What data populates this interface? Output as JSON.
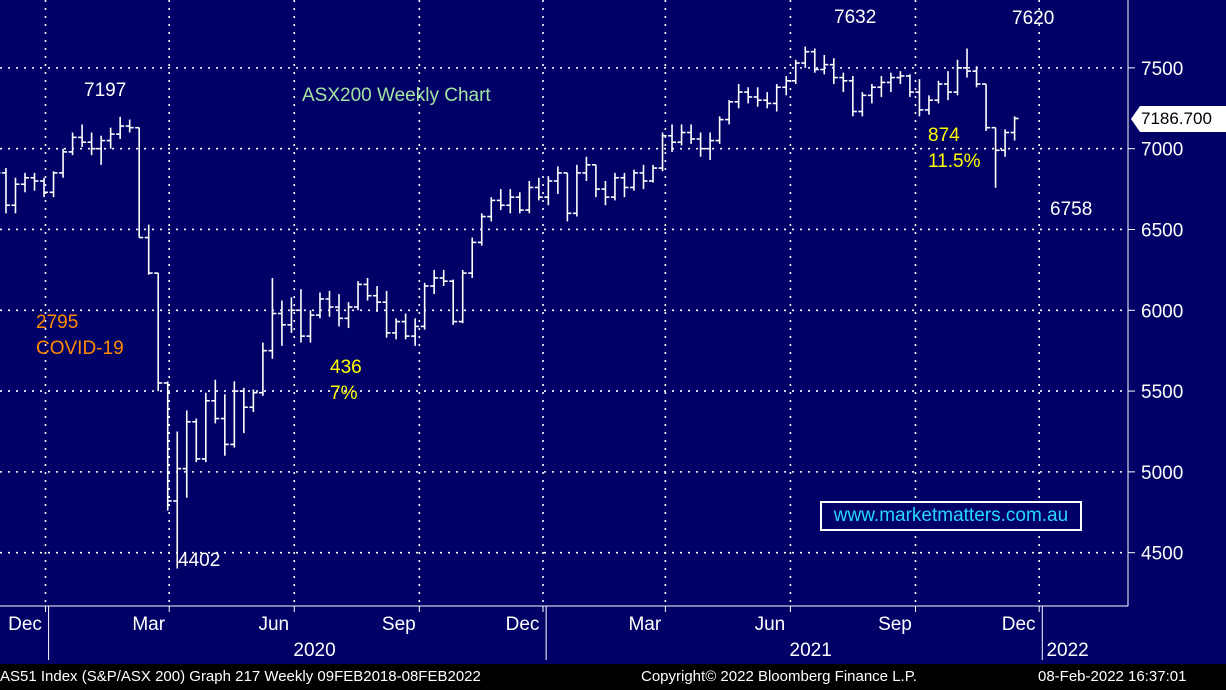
{
  "chart_data": {
    "type": "ohlc",
    "title": "ASX200 Weekly Chart",
    "xlabel": "",
    "ylabel": "",
    "ylim": [
      4170,
      7920
    ],
    "yticks": [
      4500,
      5000,
      5500,
      6000,
      6500,
      7000,
      7500
    ],
    "grid": true,
    "month_labels": [
      {
        "label": "Dec",
        "date": "2019-12-15"
      },
      {
        "label": "Mar",
        "date": "2020-03-15"
      },
      {
        "label": "Jun",
        "date": "2020-06-15"
      },
      {
        "label": "Sep",
        "date": "2020-09-15"
      },
      {
        "label": "Dec",
        "date": "2020-12-15"
      },
      {
        "label": "Mar",
        "date": "2021-03-15"
      },
      {
        "label": "Jun",
        "date": "2021-06-15"
      },
      {
        "label": "Sep",
        "date": "2021-09-15"
      },
      {
        "label": "Dec",
        "date": "2021-12-15"
      }
    ],
    "year_labels": [
      {
        "label": "2020",
        "date": "2020-07-15"
      },
      {
        "label": "2021",
        "date": "2021-07-15"
      },
      {
        "label": "2022",
        "date": "2022-01-20"
      }
    ],
    "year_dividers": [
      "2020-01-01",
      "2021-01-01",
      "2022-01-01"
    ],
    "last_price": "7186.700",
    "annotations": [
      {
        "text": "7197",
        "color": "#ffffff"
      },
      {
        "text": "7632",
        "color": "#ffffff"
      },
      {
        "text": "7620",
        "color": "#ffffff"
      },
      {
        "text": "6758",
        "color": "#ffffff"
      },
      {
        "text": "4402",
        "color": "#ffffff"
      },
      {
        "text": "2795",
        "color": "#ff8c00"
      },
      {
        "text": "COVID-19",
        "color": "#ff8c00"
      },
      {
        "text": "436",
        "color": "#ffff00"
      },
      {
        "text": "7%",
        "color": "#ffff00"
      },
      {
        "text": "874",
        "color": "#ffff00"
      },
      {
        "text": "11.5%",
        "color": "#ffff00"
      }
    ],
    "watermark": "www.marketmatters.com.au",
    "series": [
      {
        "start_date": "2019-11-24",
        "columns": [
          "open",
          "high",
          "low",
          "close"
        ],
        "ohlc": [
          [
            6800,
            6900,
            6650,
            6850
          ],
          [
            6850,
            6880,
            6600,
            6650
          ],
          [
            6650,
            6820,
            6600,
            6780
          ],
          [
            6780,
            6850,
            6730,
            6820
          ],
          [
            6820,
            6850,
            6740,
            6800
          ],
          [
            6800,
            6820,
            6700,
            6730
          ],
          [
            6730,
            6860,
            6700,
            6850
          ],
          [
            6850,
            7000,
            6820,
            6980
          ],
          [
            6980,
            7100,
            6960,
            7070
          ],
          [
            7070,
            7150,
            7010,
            7040
          ],
          [
            7040,
            7100,
            6960,
            7000
          ],
          [
            7000,
            7080,
            6900,
            7050
          ],
          [
            7050,
            7130,
            7000,
            7090
          ],
          [
            7090,
            7197,
            7060,
            7140
          ],
          [
            7140,
            7180,
            7100,
            7130
          ],
          [
            7130,
            7130,
            6450,
            6450
          ],
          [
            6450,
            6530,
            6220,
            6230
          ],
          [
            6230,
            6230,
            5500,
            5550
          ],
          [
            5550,
            5560,
            4760,
            4820
          ],
          [
            4820,
            5250,
            4402,
            5020
          ],
          [
            5020,
            5380,
            4840,
            5310
          ],
          [
            5310,
            5330,
            5060,
            5080
          ],
          [
            5080,
            5490,
            5060,
            5440
          ],
          [
            5440,
            5570,
            5300,
            5330
          ],
          [
            5330,
            5480,
            5100,
            5170
          ],
          [
            5170,
            5560,
            5150,
            5500
          ],
          [
            5500,
            5520,
            5240,
            5400
          ],
          [
            5400,
            5510,
            5370,
            5490
          ],
          [
            5490,
            5800,
            5470,
            5750
          ],
          [
            5750,
            6200,
            5700,
            5980
          ],
          [
            5980,
            6060,
            5780,
            5910
          ],
          [
            5910,
            6080,
            5860,
            6000
          ],
          [
            6000,
            6130,
            5800,
            5840
          ],
          [
            5840,
            6000,
            5800,
            5970
          ],
          [
            5970,
            6110,
            5950,
            6070
          ],
          [
            6070,
            6120,
            5960,
            6020
          ],
          [
            6020,
            6100,
            5900,
            5950
          ],
          [
            5950,
            6050,
            5890,
            6020
          ],
          [
            6020,
            6180,
            6000,
            6160
          ],
          [
            6160,
            6200,
            6060,
            6090
          ],
          [
            6090,
            6150,
            5990,
            6050
          ],
          [
            6050,
            6120,
            5830,
            5860
          ],
          [
            5860,
            5950,
            5820,
            5930
          ],
          [
            5930,
            5980,
            5820,
            5840
          ],
          [
            5840,
            5950,
            5780,
            5900
          ],
          [
            5900,
            6170,
            5880,
            6150
          ],
          [
            6150,
            6250,
            6100,
            6200
          ],
          [
            6200,
            6250,
            6150,
            6180
          ],
          [
            6180,
            6190,
            5910,
            5930
          ],
          [
            5930,
            6250,
            5920,
            6230
          ],
          [
            6230,
            6450,
            6200,
            6420
          ],
          [
            6420,
            6600,
            6400,
            6580
          ],
          [
            6580,
            6700,
            6550,
            6680
          ],
          [
            6680,
            6750,
            6620,
            6650
          ],
          [
            6650,
            6750,
            6600,
            6700
          ],
          [
            6700,
            6730,
            6600,
            6620
          ],
          [
            6620,
            6800,
            6600,
            6760
          ],
          [
            6760,
            6820,
            6680,
            6700
          ],
          [
            6700,
            6830,
            6650,
            6800
          ],
          [
            6800,
            6890,
            6720,
            6850
          ],
          [
            6850,
            6850,
            6550,
            6600
          ],
          [
            6600,
            6900,
            6580,
            6850
          ],
          [
            6850,
            6950,
            6800,
            6900
          ],
          [
            6900,
            6900,
            6700,
            6750
          ],
          [
            6750,
            6800,
            6650,
            6700
          ],
          [
            6700,
            6850,
            6680,
            6820
          ],
          [
            6820,
            6850,
            6700,
            6760
          ],
          [
            6760,
            6870,
            6740,
            6850
          ],
          [
            6850,
            6900,
            6750,
            6800
          ],
          [
            6800,
            6900,
            6790,
            6880
          ],
          [
            6880,
            7100,
            6860,
            7080
          ],
          [
            7080,
            7150,
            6980,
            7040
          ],
          [
            7040,
            7150,
            7020,
            7100
          ],
          [
            7100,
            7150,
            7030,
            7060
          ],
          [
            7060,
            7100,
            6950,
            7000
          ],
          [
            7000,
            7100,
            6930,
            7050
          ],
          [
            7050,
            7200,
            7030,
            7180
          ],
          [
            7180,
            7300,
            7150,
            7290
          ],
          [
            7290,
            7400,
            7250,
            7350
          ],
          [
            7350,
            7380,
            7280,
            7320
          ],
          [
            7320,
            7380,
            7260,
            7300
          ],
          [
            7300,
            7350,
            7250,
            7280
          ],
          [
            7280,
            7400,
            7230,
            7380
          ],
          [
            7380,
            7450,
            7330,
            7420
          ],
          [
            7420,
            7550,
            7400,
            7530
          ],
          [
            7530,
            7632,
            7500,
            7600
          ],
          [
            7600,
            7620,
            7470,
            7490
          ],
          [
            7490,
            7580,
            7460,
            7520
          ],
          [
            7520,
            7560,
            7400,
            7440
          ],
          [
            7440,
            7470,
            7350,
            7420
          ],
          [
            7420,
            7450,
            7200,
            7230
          ],
          [
            7230,
            7350,
            7200,
            7330
          ],
          [
            7330,
            7400,
            7280,
            7380
          ],
          [
            7380,
            7450,
            7320,
            7410
          ],
          [
            7410,
            7470,
            7350,
            7440
          ],
          [
            7440,
            7480,
            7400,
            7450
          ],
          [
            7450,
            7460,
            7320,
            7350
          ],
          [
            7350,
            7430,
            7200,
            7240
          ],
          [
            7240,
            7330,
            7210,
            7300
          ],
          [
            7300,
            7420,
            7280,
            7400
          ],
          [
            7400,
            7480,
            7300,
            7350
          ],
          [
            7350,
            7550,
            7330,
            7500
          ],
          [
            7500,
            7620,
            7440,
            7480
          ],
          [
            7480,
            7510,
            7380,
            7400
          ],
          [
            7400,
            7400,
            7110,
            7130
          ],
          [
            7130,
            7130,
            6758,
            6990
          ],
          [
            6990,
            7120,
            6950,
            7100
          ],
          [
            7100,
            7200,
            7050,
            7186.7
          ]
        ]
      }
    ]
  },
  "footer": {
    "left": "AS51 Index (S&P/ASX 200) Graph 217  Weekly 09FEB2018-08FEB2022",
    "center": "Copyright© 2022 Bloomberg Finance L.P.",
    "right": "08-Feb-2022 16:37:01"
  },
  "colors": {
    "plot_bg": "#000066",
    "grid": "#ffffff",
    "price_bars": "#ffffff",
    "title": "#a3e4a3",
    "highlight": "#ffff00",
    "covid": "#ff8c00"
  }
}
